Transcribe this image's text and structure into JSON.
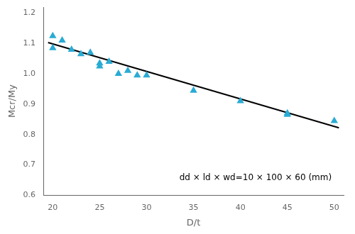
{
  "chart_data": {
    "type": "scatter",
    "xlabel": "D/t",
    "ylabel": "Mcr/My",
    "series": [
      {
        "type": "scatter",
        "color": "#29ABD4",
        "marker": "triangle",
        "x": [
          20,
          20,
          21,
          22,
          23,
          24,
          25,
          25,
          26,
          27,
          28,
          29,
          30,
          35,
          40,
          45,
          45,
          50
        ],
        "values": [
          1.125,
          1.085,
          1.11,
          1.08,
          1.065,
          1.07,
          1.035,
          1.025,
          1.04,
          1.0,
          1.01,
          0.995,
          0.995,
          0.945,
          0.91,
          0.865,
          0.87,
          0.845
        ]
      },
      {
        "type": "line",
        "color": "#000000",
        "line_style": "solid",
        "x": [
          19.5,
          50.5
        ],
        "values": [
          1.103,
          0.822
        ]
      }
    ],
    "xlim": [
      19,
      51
    ],
    "ylim": [
      0.6,
      1.22
    ],
    "xticks": [
      20,
      25,
      30,
      35,
      40,
      45,
      50
    ],
    "yticks": [
      0.6,
      0.7,
      0.8,
      0.9,
      {
        "value": 1.0,
        "label": "1.0"
      },
      1.1,
      1.2
    ],
    "annotations": [
      {
        "text": "dd × ld × wd=10 × 100 × 60 (mm)",
        "x": 33.5,
        "y": 0.642
      }
    ],
    "grid": false
  }
}
